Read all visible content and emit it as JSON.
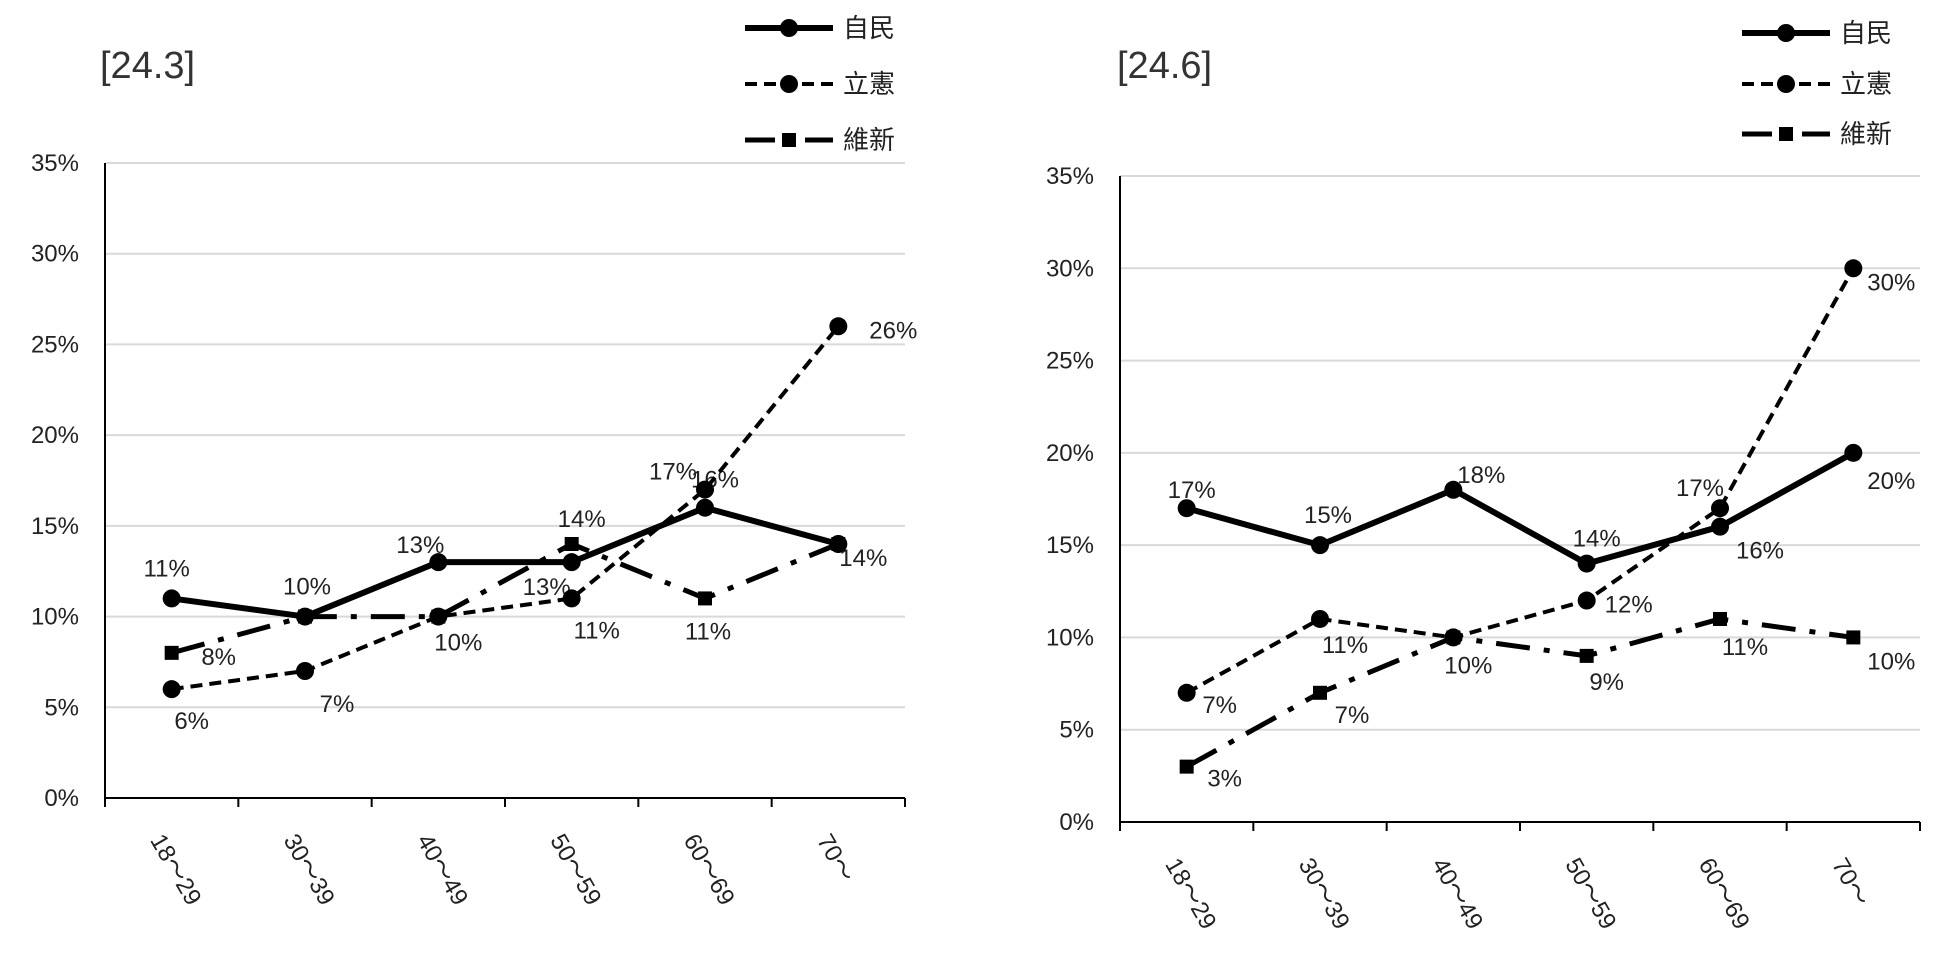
{
  "charts": [
    {
      "title": "[24.3]",
      "chart_data": {
        "type": "line",
        "categories": [
          "18～29",
          "30～39",
          "40～49",
          "50～59",
          "60～69",
          "70～"
        ],
        "ylim": [
          0,
          35
        ],
        "yticks": [
          "0%",
          "5%",
          "10%",
          "15%",
          "20%",
          "25%",
          "30%",
          "35%"
        ],
        "series": [
          {
            "name": "自民",
            "values": [
              11,
              10,
              13,
              13,
              16,
              14
            ],
            "labels": [
              "11%",
              "10%",
              "13%",
              "13%",
              "16%",
              "14%"
            ]
          },
          {
            "name": "立憲",
            "values": [
              6,
              7,
              10,
              11,
              17,
              26
            ],
            "labels": [
              "6%",
              "7%",
              "10%",
              "11%",
              "17%",
              "26%"
            ]
          },
          {
            "name": "維新",
            "values": [
              8,
              10,
              10,
              14,
              11,
              14
            ],
            "labels": [
              "8%",
              "",
              "",
              "14%",
              "11%",
              ""
            ]
          }
        ]
      }
    },
    {
      "title": "[24.6]",
      "chart_data": {
        "type": "line",
        "categories": [
          "18～29",
          "30～39",
          "40～49",
          "50～59",
          "60～69",
          "70～"
        ],
        "ylim": [
          0,
          35
        ],
        "yticks": [
          "0%",
          "5%",
          "10%",
          "15%",
          "20%",
          "25%",
          "30%",
          "35%"
        ],
        "series": [
          {
            "name": "自民",
            "values": [
              17,
              15,
              18,
              14,
              16,
              20
            ],
            "labels": [
              "17%",
              "15%",
              "18%",
              "14%",
              "16%",
              "20%"
            ]
          },
          {
            "name": "立憲",
            "values": [
              7,
              11,
              10,
              12,
              17,
              30
            ],
            "labels": [
              "7%",
              "11%",
              "10%",
              "12%",
              "17%",
              "30%"
            ]
          },
          {
            "name": "維新",
            "values": [
              3,
              7,
              10,
              9,
              11,
              10
            ],
            "labels": [
              "3%",
              "7%",
              "",
              "9%",
              "11%",
              "10%"
            ]
          }
        ]
      }
    }
  ]
}
